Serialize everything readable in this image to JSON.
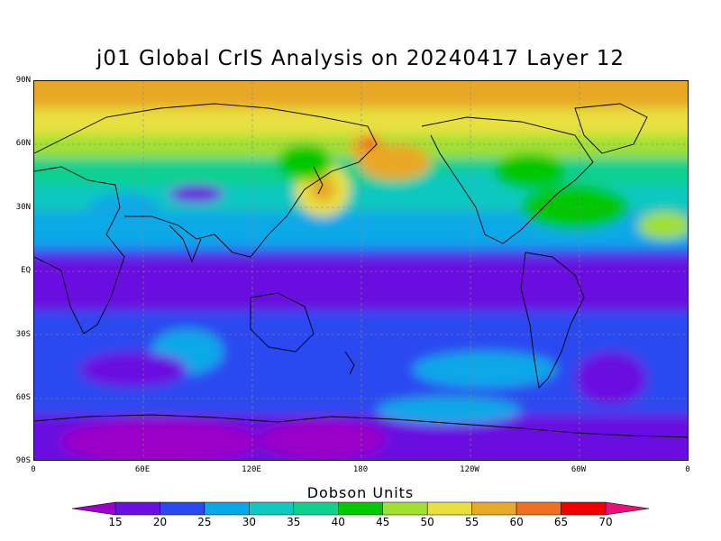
{
  "title": "j01 Global CrIS Analysis on 20240417 Layer 12",
  "lat_labels": [
    "90N",
    "60N",
    "30N",
    "EQ",
    "30S",
    "60S",
    "90S"
  ],
  "lon_labels": [
    "0",
    "60E",
    "120E",
    "180",
    "120W",
    "60W",
    "0"
  ],
  "colorbar": {
    "title": "Dobson Units",
    "ticks": [
      "15",
      "20",
      "25",
      "30",
      "35",
      "40",
      "45",
      "50",
      "55",
      "60",
      "65",
      "70"
    ],
    "colors": [
      "#9a00c8",
      "#6a10e0",
      "#2a48f0",
      "#0aa8e8",
      "#10c8c0",
      "#10d090",
      "#00c800",
      "#a0e030",
      "#e8e040",
      "#e8a828",
      "#f07020",
      "#f00000",
      "#e8107a"
    ]
  }
}
